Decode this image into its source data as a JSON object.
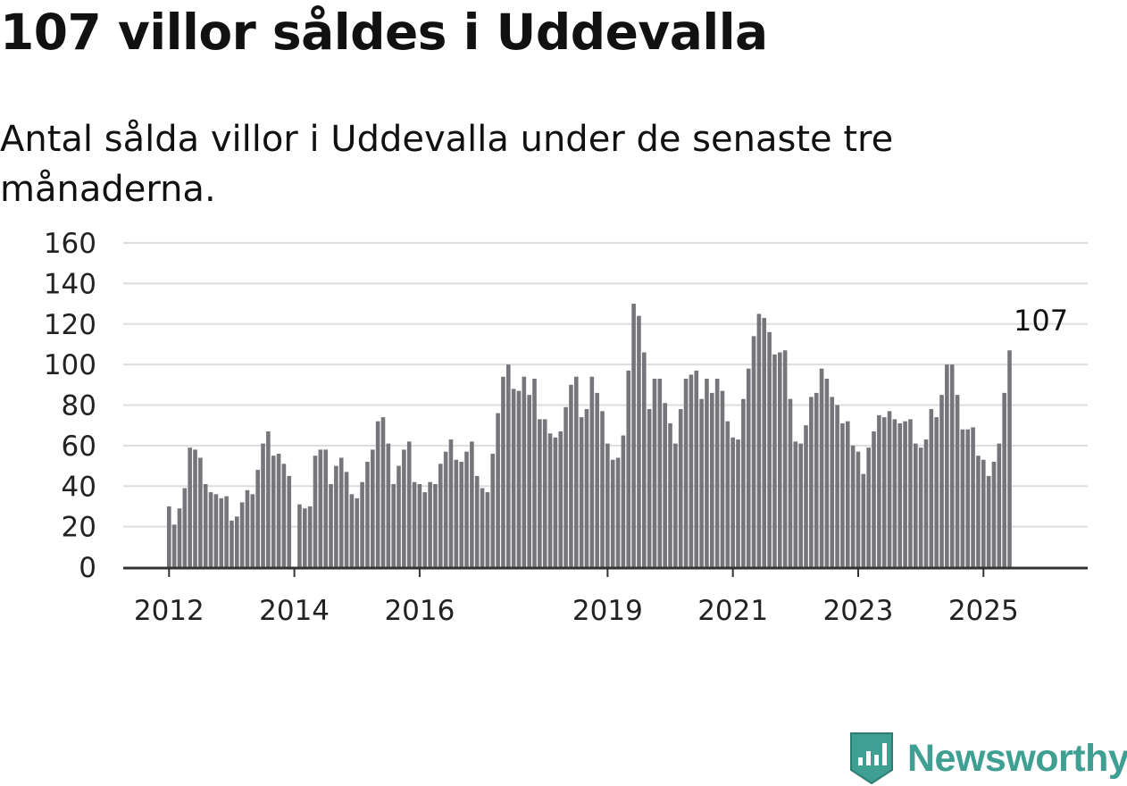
{
  "title": "107 villor såldes i Uddevalla",
  "subtitle": "Antal sålda villor i Uddevalla under de senaste tre månaderna.",
  "brand": {
    "name": "Newsworthy",
    "icon": "bar-chart-badge-icon",
    "color": "#3f9f93"
  },
  "colors": {
    "bar": "#75757a",
    "highlight": "#1aa59a",
    "grid": "#dddddd",
    "axis": "#333333"
  },
  "chart_data": {
    "type": "bar",
    "title": "107 villor såldes i Uddevalla",
    "subtitle": "Antal sålda villor i Uddevalla under de senaste tre månaderna.",
    "xlabel": "",
    "ylabel": "",
    "ylim": [
      0,
      160
    ],
    "yticks": [
      0,
      20,
      40,
      60,
      80,
      100,
      120,
      140,
      160
    ],
    "xticks": [
      "2012",
      "2014",
      "2016",
      "2019",
      "2021",
      "2023",
      "2025"
    ],
    "grid": true,
    "start": "2012-01",
    "frequency": "monthly",
    "values": [
      30,
      21,
      29,
      39,
      59,
      58,
      54,
      41,
      37,
      36,
      34,
      35,
      23,
      25,
      32,
      38,
      36,
      48,
      61,
      67,
      55,
      56,
      51,
      45,
      0,
      31,
      29,
      30,
      55,
      58,
      58,
      41,
      50,
      54,
      47,
      36,
      34,
      42,
      52,
      58,
      72,
      74,
      61,
      41,
      50,
      58,
      62,
      42,
      41,
      37,
      42,
      41,
      51,
      57,
      63,
      53,
      52,
      57,
      62,
      45,
      39,
      37,
      56,
      76,
      94,
      100,
      88,
      87,
      94,
      85,
      93,
      73,
      73,
      66,
      64,
      67,
      79,
      90,
      94,
      74,
      78,
      94,
      86,
      77,
      61,
      53,
      54,
      65,
      97,
      130,
      124,
      106,
      78,
      93,
      93,
      81,
      71,
      61,
      78,
      93,
      95,
      97,
      83,
      93,
      86,
      93,
      87,
      72,
      64,
      63,
      83,
      98,
      114,
      125,
      123,
      116,
      105,
      106,
      107,
      83,
      62,
      61,
      70,
      84,
      86,
      98,
      93,
      84,
      80,
      71,
      72,
      60,
      57,
      46,
      59,
      67,
      75,
      74,
      77,
      73,
      71,
      72,
      73,
      61,
      59,
      63,
      78,
      74,
      85,
      100,
      100,
      85,
      68,
      68,
      69,
      55,
      53,
      45,
      52,
      61,
      86,
      107
    ],
    "highlight": {
      "index": 167,
      "value": 107,
      "label": "107"
    }
  }
}
